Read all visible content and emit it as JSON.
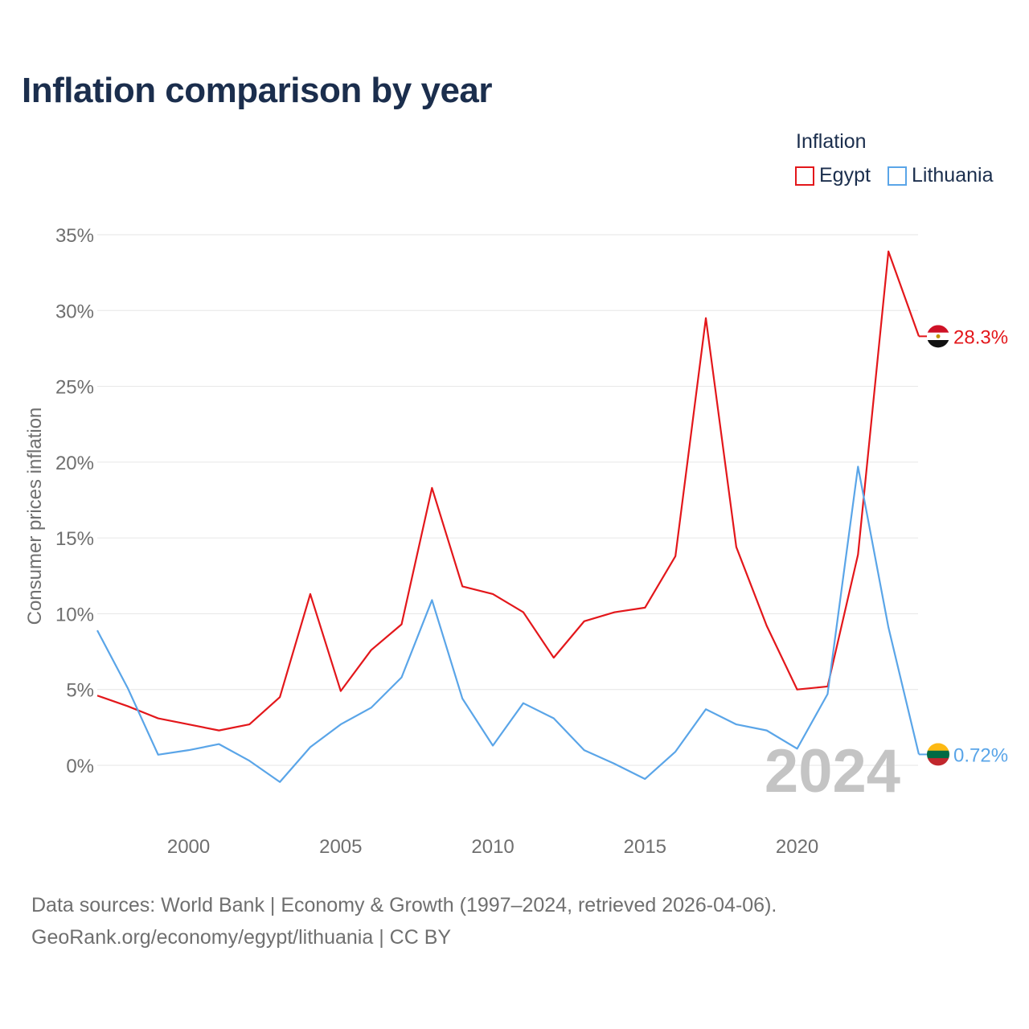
{
  "chart_data": {
    "type": "line",
    "title": "Inflation comparison by year",
    "legend_title": "Inflation",
    "ylabel": "Consumer prices inflation",
    "xlabel": "",
    "xlim": [
      1997,
      2024
    ],
    "ylim": [
      -3,
      35
    ],
    "x_ticks": [
      2000,
      2005,
      2010,
      2015,
      2020
    ],
    "y_ticks": [
      0,
      5,
      10,
      15,
      20,
      25,
      30,
      35
    ],
    "y_tick_labels": [
      "0%",
      "5%",
      "10%",
      "15%",
      "20%",
      "25%",
      "30%",
      "35%"
    ],
    "x": [
      1997,
      1998,
      1999,
      2000,
      2001,
      2002,
      2003,
      2004,
      2005,
      2006,
      2007,
      2008,
      2009,
      2010,
      2011,
      2012,
      2013,
      2014,
      2015,
      2016,
      2017,
      2018,
      2019,
      2020,
      2021,
      2022,
      2023,
      2024
    ],
    "series": [
      {
        "name": "Egypt",
        "color": "#e3171b",
        "values": [
          4.6,
          3.9,
          3.1,
          2.7,
          2.3,
          2.7,
          4.5,
          11.3,
          4.9,
          7.6,
          9.3,
          18.3,
          11.8,
          11.3,
          10.1,
          7.1,
          9.5,
          10.1,
          10.4,
          13.8,
          29.5,
          14.4,
          9.2,
          5.0,
          5.2,
          13.9,
          33.9,
          28.3
        ],
        "end_label": "28.3%",
        "flag": "egypt-flag"
      },
      {
        "name": "Lithuania",
        "color": "#5aa5e8",
        "values": [
          8.9,
          5.1,
          0.7,
          1.0,
          1.4,
          0.3,
          -1.1,
          1.2,
          2.7,
          3.8,
          5.8,
          10.9,
          4.4,
          1.3,
          4.1,
          3.1,
          1.0,
          0.1,
          -0.9,
          0.9,
          3.7,
          2.7,
          2.3,
          1.1,
          4.7,
          19.7,
          9.1,
          0.72
        ],
        "end_label": "0.72%",
        "flag": "lithuania-flag"
      }
    ],
    "year_watermark": "2024",
    "grid": true,
    "legend_position": "top-right"
  },
  "footer": {
    "line1": "Data sources: World Bank | Economy & Growth (1997–2024, retrieved 2026-04-06).",
    "line2": "GeoRank.org/economy/egypt/lithuania | CC BY"
  }
}
